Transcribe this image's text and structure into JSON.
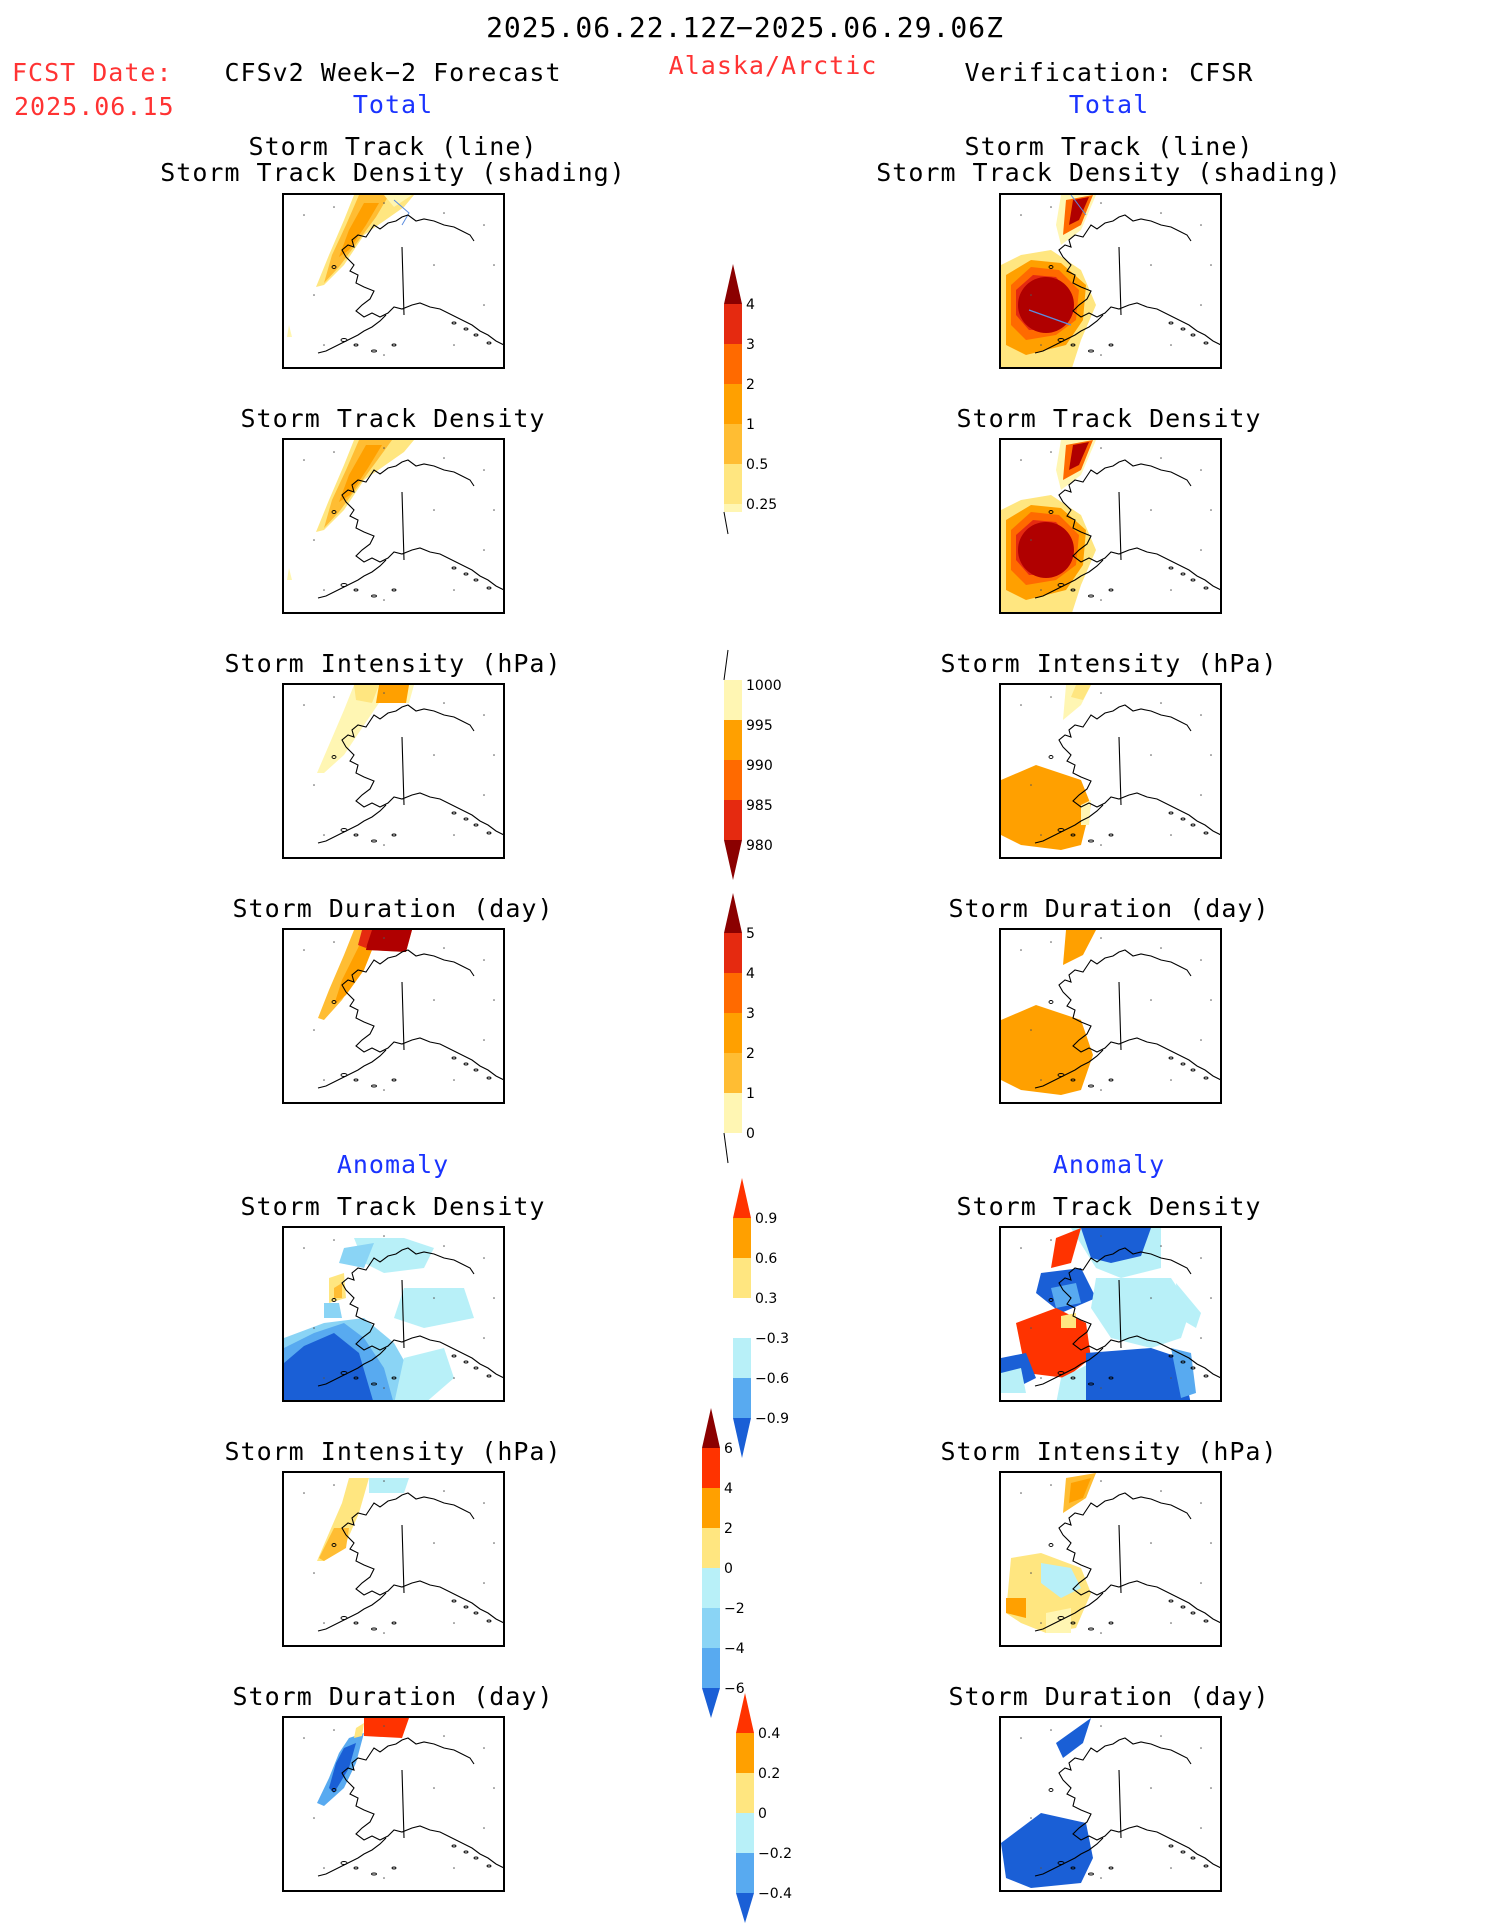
{
  "header": {
    "date_range": "2025.06.22.12Z−2025.06.29.06Z",
    "fcst_date_label": "FCST Date:",
    "fcst_date_value": "2025.06.15",
    "forecast_title": "CFSv2 Week−2 Forecast",
    "region": "Alaska/Arctic",
    "verification_title": "Verification: CFSR",
    "total_left": "Total",
    "total_right": "Total",
    "anomaly_left": "Anomaly",
    "anomaly_right": "Anomaly"
  },
  "panels": {
    "track_line": "Storm Track (line)",
    "track_shading": "Storm Track Density (shading)",
    "density": "Storm Track Density",
    "intensity": "Storm Intensity (hPa)",
    "duration": "Storm Duration (day)"
  },
  "colorbars": {
    "density_total": [
      "4",
      "3",
      "2",
      "1",
      "0.5",
      "0.25"
    ],
    "intensity_total": [
      "1000",
      "995",
      "990",
      "985",
      "980"
    ],
    "duration_total": [
      "5",
      "4",
      "3",
      "2",
      "1",
      "0"
    ],
    "density_anom": [
      "0.9",
      "0.6",
      "0.3",
      "−0.3",
      "−0.6",
      "−0.9"
    ],
    "intensity_anom": [
      "6",
      "4",
      "2",
      "0",
      "−2",
      "−4",
      "−6"
    ],
    "duration_anom": [
      "0.4",
      "0.2",
      "0",
      "−0.2",
      "−0.4"
    ]
  },
  "colors": {
    "title_red": "#ff3333",
    "label_blue": "#1a33ff",
    "warm": [
      "#fff6b3",
      "#ffe680",
      "#ffbd33",
      "#ffa000",
      "#ff6a00",
      "#e52a10",
      "#b00000",
      "#8b0000"
    ],
    "cool": [
      "#b8f0f8",
      "#8ad4f5",
      "#58aaf0",
      "#2b7ae6",
      "#1a5fd6",
      "#1444b8"
    ]
  }
}
